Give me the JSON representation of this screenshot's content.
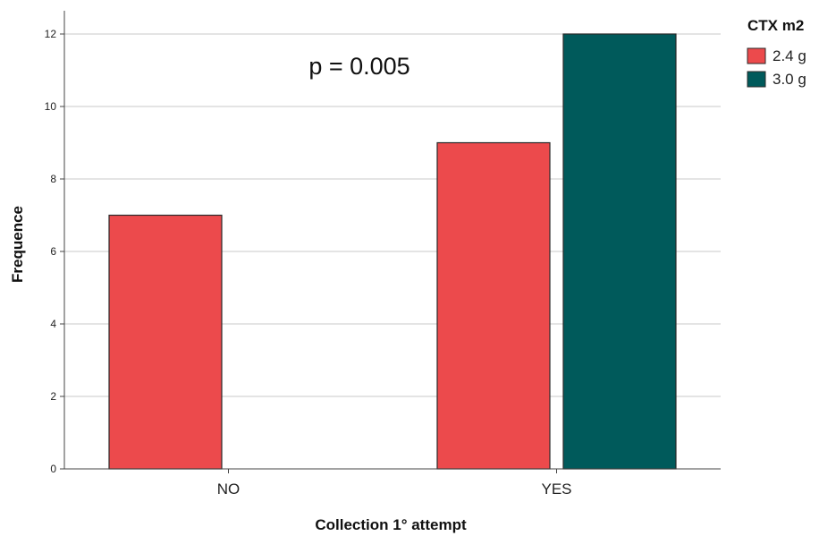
{
  "chart_data": {
    "type": "bar",
    "categories": [
      "NO",
      "YES"
    ],
    "series": [
      {
        "name": "2.4 g",
        "values": [
          7,
          9
        ],
        "color": "#ec4a4c"
      },
      {
        "name": "3.0 g",
        "values": [
          0,
          12
        ],
        "color": "#005a5b"
      }
    ],
    "xlabel": "Collection 1° attempt",
    "ylabel": "Frequence",
    "ylim": [
      0,
      12
    ],
    "yticks": [
      0,
      2,
      4,
      6,
      8,
      10,
      12
    ],
    "grid": true,
    "legend": {
      "title": "CTX m2",
      "position": "top-right"
    },
    "annotations": [
      "p = 0.005"
    ]
  }
}
